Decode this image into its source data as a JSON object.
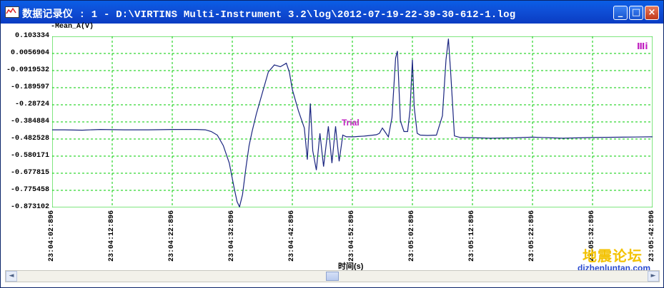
{
  "window": {
    "title": "数据记录仪 : 1 - D:\\VIRTINS Multi-Instrument 3.2\\log\\2012-07-19-22-39-30-612-1.log",
    "minimize_glyph": "_",
    "maximize_glyph": "□",
    "close_glyph": "×"
  },
  "chart_data": {
    "type": "line",
    "title": "",
    "ylabel": "-Mean_A(V)",
    "xlabel": "时间(s)",
    "legend_marker": "Ⅲi",
    "annotation": "Trial",
    "y_ticks": [
      "0.103334",
      "0.0056904",
      "-0.0919532",
      "-0.189597",
      "-0.28724",
      "-0.384884",
      "-0.482528",
      "-0.580171",
      "-0.677815",
      "-0.775458",
      "-0.873102"
    ],
    "ylim": [
      -0.873102,
      0.103334
    ],
    "x_ticks": [
      "23:04:02:896",
      "23:04:12:896",
      "23:04:22:896",
      "23:04:32:896",
      "23:04:42:896",
      "23:04:52:896",
      "23:05:02:896",
      "23:05:12:896",
      "23:05:22:896",
      "23:05:32:896",
      "23:05:42:896"
    ],
    "xlim": [
      0,
      100
    ],
    "grid": true,
    "series": [
      {
        "color": "#1a2580",
        "x": [
          0,
          2,
          5,
          8,
          12,
          16,
          20,
          24,
          25.5,
          26.5,
          27.5,
          28.5,
          29.5,
          30.3,
          30.8,
          31.2,
          31.7,
          32.3,
          32.8,
          33.3,
          34,
          35,
          36,
          37,
          38,
          39,
          39.5,
          40,
          41,
          42,
          42.5,
          43,
          43.4,
          44,
          44.6,
          45.2,
          46,
          46.6,
          47.2,
          47.8,
          48.4,
          49,
          49.6,
          50.3,
          51,
          52,
          53,
          54,
          54.5,
          55,
          55.4,
          56,
          56.6,
          57.2,
          57.5,
          58,
          58.6,
          59.2,
          59.6,
          60,
          60.3,
          60.8,
          61.3,
          62.5,
          64,
          65,
          65.6,
          66,
          66.4,
          67,
          68,
          70,
          73,
          77,
          80,
          85,
          90,
          95,
          100
        ],
        "y": [
          -0.43,
          -0.43,
          -0.432,
          -0.428,
          -0.43,
          -0.43,
          -0.428,
          -0.428,
          -0.43,
          -0.44,
          -0.46,
          -0.52,
          -0.62,
          -0.76,
          -0.84,
          -0.87,
          -0.8,
          -0.64,
          -0.52,
          -0.44,
          -0.34,
          -0.22,
          -0.1,
          -0.06,
          -0.07,
          -0.05,
          -0.1,
          -0.2,
          -0.32,
          -0.42,
          -0.6,
          -0.28,
          -0.55,
          -0.66,
          -0.45,
          -0.64,
          -0.41,
          -0.62,
          -0.41,
          -0.61,
          -0.46,
          -0.47,
          -0.47,
          -0.47,
          -0.468,
          -0.466,
          -0.462,
          -0.458,
          -0.45,
          -0.42,
          -0.44,
          -0.47,
          -0.36,
          -0.02,
          0.02,
          -0.38,
          -0.44,
          -0.44,
          -0.32,
          -0.03,
          -0.3,
          -0.45,
          -0.46,
          -0.462,
          -0.46,
          -0.35,
          -0.03,
          0.09,
          -0.12,
          -0.465,
          -0.474,
          -0.475,
          -0.478,
          -0.476,
          -0.472,
          -0.478,
          -0.474,
          -0.472,
          -0.47
        ]
      }
    ]
  },
  "scrollbar": {
    "left_arrow": "◄",
    "right_arrow": "►",
    "position_fraction": 0.5
  },
  "watermark": {
    "chinese": "地震论坛",
    "url": "dizhenluntan.com"
  }
}
